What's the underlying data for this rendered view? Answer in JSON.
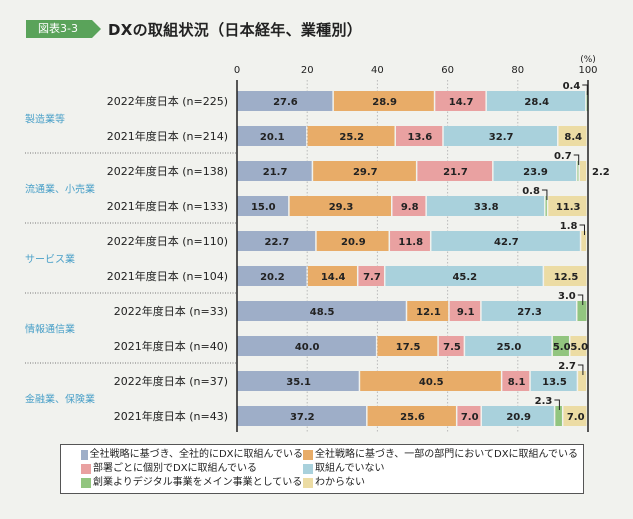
{
  "header": {
    "figure_tag": "図表3-3",
    "title": "DXの取組状況（日本経年、業種別）"
  },
  "chart_data": {
    "type": "bar",
    "orientation": "horizontal-stacked",
    "title": "DXの取組状況（日本経年、業種別）",
    "unit_label": "(%)",
    "xlim": [
      0,
      100
    ],
    "x_ticks": [
      0,
      20,
      40,
      60,
      80,
      100
    ],
    "grid": true,
    "legend_position": "bottom",
    "series": [
      {
        "name": "全社戦略に基づき、全社的にDXに取組んでいる",
        "color": "#9eaec8"
      },
      {
        "name": "全社戦略に基づき、一部の部門においてDXに取組んでいる",
        "color": "#e8ac68"
      },
      {
        "name": "部署ごとに個別でDXに取組んでいる",
        "color": "#e9a1a1"
      },
      {
        "name": "取組んでいない",
        "color": "#a9d1dc"
      },
      {
        "name": "創業よりデジタル事業をメイン事業としている",
        "color": "#92c57f"
      },
      {
        "name": "わからない",
        "color": "#ecdca4"
      }
    ],
    "groups": [
      {
        "name": "製造業等",
        "rows": [
          {
            "label": "2022年度日本 (n=225)",
            "values": [
              27.6,
              28.9,
              14.7,
              28.4,
              0.4,
              0
            ]
          },
          {
            "label": "2021年度日本 (n=214)",
            "values": [
              20.1,
              25.2,
              13.6,
              32.7,
              0,
              8.4
            ]
          }
        ]
      },
      {
        "name": "流通業、小売業",
        "rows": [
          {
            "label": "2022年度日本 (n=138)",
            "values": [
              21.7,
              29.7,
              21.7,
              23.9,
              0.7,
              2.2
            ]
          },
          {
            "label": "2021年度日本 (n=133)",
            "values": [
              15.0,
              29.3,
              9.8,
              33.8,
              0.8,
              11.3
            ]
          }
        ]
      },
      {
        "name": "サービス業",
        "rows": [
          {
            "label": "2022年度日本 (n=110)",
            "values": [
              22.7,
              20.9,
              11.8,
              42.7,
              0,
              1.8
            ]
          },
          {
            "label": "2021年度日本 (n=104)",
            "values": [
              20.2,
              14.4,
              7.7,
              45.2,
              0,
              12.5
            ]
          }
        ]
      },
      {
        "name": "情報通信業",
        "rows": [
          {
            "label": "2022年度日本 (n=33)",
            "values": [
              48.5,
              12.1,
              9.1,
              27.3,
              3.0,
              0
            ]
          },
          {
            "label": "2021年度日本 (n=40)",
            "values": [
              40.0,
              17.5,
              7.5,
              25.0,
              5.0,
              5.0
            ]
          }
        ]
      },
      {
        "name": "金融業、保険業",
        "rows": [
          {
            "label": "2022年度日本 (n=37)",
            "values": [
              35.1,
              40.5,
              8.1,
              13.5,
              0,
              2.7
            ]
          },
          {
            "label": "2021年度日本 (n=43)",
            "values": [
              37.2,
              25.6,
              7.0,
              20.9,
              2.3,
              7.0
            ]
          }
        ]
      }
    ],
    "callouts": [
      {
        "row": 0,
        "series": 4,
        "text": "0.4"
      },
      {
        "row": 2,
        "series": 4,
        "text": "0.7"
      },
      {
        "row": 2,
        "series": 5,
        "text": "2.2",
        "outside": true
      },
      {
        "row": 3,
        "series": 4,
        "text": "0.8"
      },
      {
        "row": 4,
        "series": 5,
        "text": "1.8"
      },
      {
        "row": 6,
        "series": 4,
        "text": "3.0"
      },
      {
        "row": 8,
        "series": 5,
        "text": "2.7"
      },
      {
        "row": 9,
        "series": 4,
        "text": "2.3"
      }
    ]
  },
  "legend": {
    "rows": [
      [
        "全社戦略に基づき、全社的にDXに取組んでいる",
        "全社戦略に基づき、一部の部門においてDXに取組んでいる"
      ],
      [
        "部署ごとに個別でDXに取組んでいる",
        "取組んでいない"
      ],
      [
        "創業よりデジタル事業をメイン事業としている",
        "わからない"
      ]
    ]
  }
}
